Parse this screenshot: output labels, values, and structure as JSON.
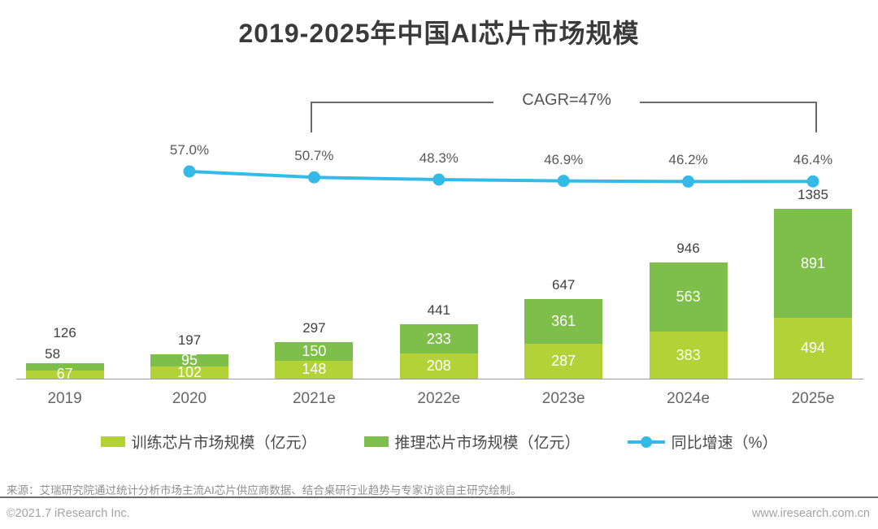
{
  "title": "2019-2025年中国AI芯片市场规模",
  "chart_data": {
    "type": "bar",
    "subtype": "stacked-bar-with-line",
    "title": "2019-2025年中国AI芯片市场规模",
    "categories": [
      "2019",
      "2020",
      "2021e",
      "2022e",
      "2023e",
      "2024e",
      "2025e"
    ],
    "series": [
      {
        "name": "训练芯片市场规模（亿元）",
        "role": "bottom-segment",
        "color": "#b2d237",
        "values": [
          67,
          102,
          148,
          208,
          287,
          383,
          494
        ]
      },
      {
        "name": "推理芯片市场规模（亿元）",
        "role": "top-segment",
        "color": "#7dbf4a",
        "values": [
          58,
          95,
          150,
          233,
          361,
          563,
          891
        ]
      }
    ],
    "totals": [
      126,
      197,
      297,
      441,
      647,
      946,
      1385
    ],
    "line": {
      "name": "同比增速（%）",
      "color": "#35b9e6",
      "categories": [
        "2020",
        "2021e",
        "2022e",
        "2023e",
        "2024e",
        "2025e"
      ],
      "values": [
        57.0,
        50.7,
        48.3,
        46.9,
        46.2,
        46.4
      ],
      "labels": [
        "57.0%",
        "50.7%",
        "48.3%",
        "46.9%",
        "46.2%",
        "46.4%"
      ]
    },
    "annotation": "CAGR=47%",
    "annotation_span": [
      "2021e",
      "2025e"
    ],
    "ylim": [
      0,
      1450
    ],
    "grid": false,
    "legend_position": "bottom"
  },
  "legend": [
    {
      "swatch": "rect",
      "color": "#b2d237",
      "label": "训练芯片市场规模（亿元）"
    },
    {
      "swatch": "rect",
      "color": "#7dbf4a",
      "label": "推理芯片市场规模（亿元）"
    },
    {
      "swatch": "line-dot",
      "color": "#35b9e6",
      "label": "同比增速（%）"
    }
  ],
  "footer": {
    "source": "来源：艾瑞研究院通过统计分析市场主流AI芯片供应商数据、结合桌研行业趋势与专家访谈自主研究绘制。",
    "copyright": "©2021.7 iResearch Inc.",
    "website": "www.iresearch.com.cn"
  },
  "colors": {
    "training_green": "#b2d237",
    "inference_green": "#7dbf4a",
    "growth_blue": "#35b9e6",
    "title_text": "#3a3a3a",
    "axis_line": "#9a9a9a",
    "bracket_gray": "#6b6b6b"
  }
}
